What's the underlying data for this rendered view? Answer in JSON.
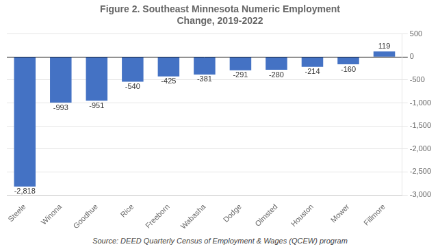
{
  "chart_data": {
    "type": "bar",
    "title": "Figure 2. Southeast Minnesota Numeric Employment\nChange, 2019-2022",
    "categories": [
      "Steele",
      "Winona",
      "Goodhue",
      "Rice",
      "Freeborn",
      "Wabasha",
      "Dodge",
      "Olmsted",
      "Houston",
      "Mower",
      "Fillmore"
    ],
    "values": [
      -2818,
      -993,
      -951,
      -540,
      -425,
      -381,
      -291,
      -280,
      -214,
      -160,
      119
    ],
    "value_labels": [
      "-2,818",
      "-993",
      "-951",
      "-540",
      "-425",
      "-381",
      "-291",
      "-280",
      "-214",
      "-160",
      "119"
    ],
    "data_labels": true,
    "color": "#4472C4",
    "ylim": [
      -3000,
      500
    ],
    "yticks": [
      {
        "value": -3000,
        "label": "-3,000"
      },
      {
        "value": -2500,
        "label": "-2,500"
      },
      {
        "value": -2000,
        "label": "-2,000"
      },
      {
        "value": -1500,
        "label": "-1,500"
      },
      {
        "value": -1000,
        "label": "-1,000"
      },
      -500,
      0,
      500
    ],
    "grid": true,
    "annotations": [
      "Source: DEED Quarterly Census of Employment & Wages (QCEW) program"
    ]
  }
}
